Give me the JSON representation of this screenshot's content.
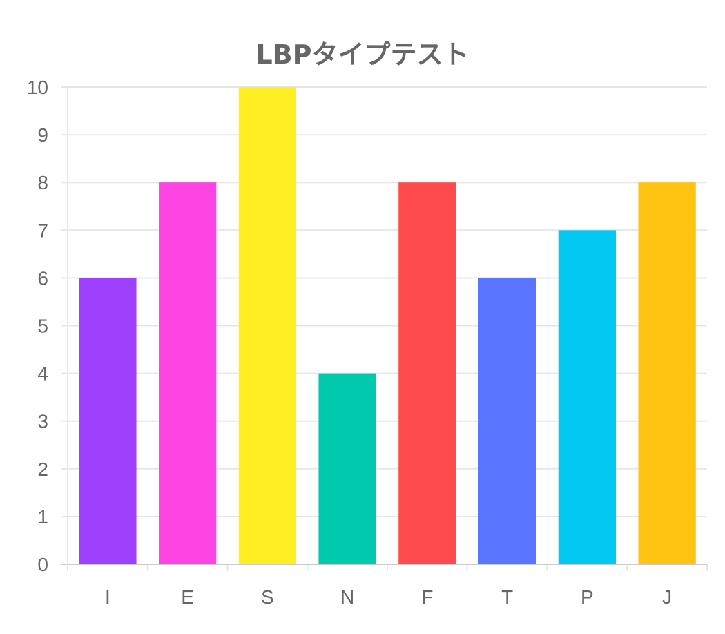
{
  "chart_data": {
    "type": "bar",
    "title": "LBPタイプテスト",
    "categories": [
      "I",
      "E",
      "S",
      "N",
      "F",
      "T",
      "P",
      "J"
    ],
    "values": [
      6,
      8,
      10,
      4,
      8,
      6,
      7,
      8
    ],
    "colors": [
      "#a040ff",
      "#ff44e4",
      "#ffee22",
      "#00c9ad",
      "#ff4b4d",
      "#5a75ff",
      "#03c8f2",
      "#ffc312"
    ],
    "ylim": [
      0,
      10
    ],
    "yticks": [
      0,
      1,
      2,
      3,
      4,
      5,
      6,
      7,
      8,
      9,
      10
    ],
    "grid": true,
    "legend": "none",
    "colors_style": {
      "grid": "#e6e6e6",
      "axis": "#cccccc",
      "text": "#666666"
    }
  }
}
